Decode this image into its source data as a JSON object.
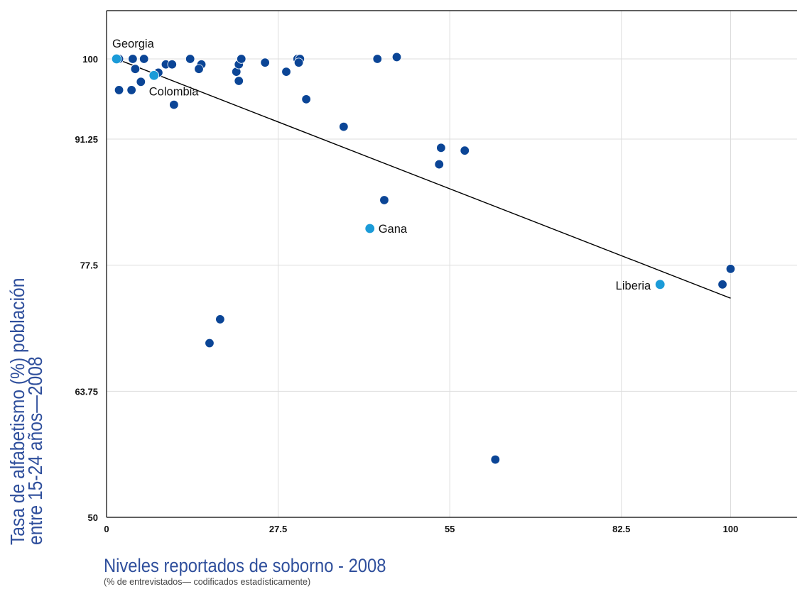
{
  "chart_data": {
    "type": "scatter",
    "xlabel": "Niveles reportados de soborno - 2008",
    "xlabel_note": "(% de entrevistados— codificados estadísticamente)",
    "ylabel": [
      "Tasa de alfabetismo (%) población",
      "entre 15-24 años—2008"
    ],
    "xlim": [
      0,
      110
    ],
    "ylim": [
      50,
      105.5
    ],
    "x_ticks": [
      {
        "value": 0,
        "label": "0"
      },
      {
        "value": 27.5,
        "label": "27.5"
      },
      {
        "value": 55,
        "label": "55"
      },
      {
        "value": 82.5,
        "label": "82.5"
      },
      {
        "value": 100,
        "label": "100"
      }
    ],
    "y_ticks": [
      {
        "value": 50,
        "label": "50"
      },
      {
        "value": 63.75,
        "label": "63.75"
      },
      {
        "value": 77.5,
        "label": "77.5"
      },
      {
        "value": 91.25,
        "label": "91.25"
      },
      {
        "value": 100,
        "label": "100"
      }
    ],
    "grid": true,
    "colors": {
      "point": "#0b4596",
      "highlight": "#1b9bd8",
      "trend": "#000000",
      "grid": "#dddddd",
      "title": "#2f4f9c"
    },
    "points": [
      {
        "x": 2,
        "y": 100
      },
      {
        "x": 4.2,
        "y": 100
      },
      {
        "x": 6,
        "y": 100
      },
      {
        "x": 4.6,
        "y": 98.9
      },
      {
        "x": 2,
        "y": 96.6
      },
      {
        "x": 4,
        "y": 96.6
      },
      {
        "x": 5.5,
        "y": 97.5
      },
      {
        "x": 8.3,
        "y": 98.5
      },
      {
        "x": 9.5,
        "y": 99.4
      },
      {
        "x": 10.5,
        "y": 99.4
      },
      {
        "x": 10.8,
        "y": 95
      },
      {
        "x": 13.4,
        "y": 100
      },
      {
        "x": 15.2,
        "y": 99.4
      },
      {
        "x": 14.8,
        "y": 98.9
      },
      {
        "x": 16.5,
        "y": 69
      },
      {
        "x": 18.2,
        "y": 71.6
      },
      {
        "x": 20.8,
        "y": 98.6
      },
      {
        "x": 21.2,
        "y": 99.4
      },
      {
        "x": 21.6,
        "y": 100
      },
      {
        "x": 21.2,
        "y": 97.6
      },
      {
        "x": 25.4,
        "y": 99.6
      },
      {
        "x": 28.8,
        "y": 98.6
      },
      {
        "x": 30.6,
        "y": 100
      },
      {
        "x": 31,
        "y": 100
      },
      {
        "x": 30.8,
        "y": 99.6
      },
      {
        "x": 32,
        "y": 95.6
      },
      {
        "x": 38,
        "y": 92.6
      },
      {
        "x": 43.4,
        "y": 100
      },
      {
        "x": 44.5,
        "y": 84.6
      },
      {
        "x": 46.5,
        "y": 100.2
      },
      {
        "x": 53.3,
        "y": 88.5
      },
      {
        "x": 53.6,
        "y": 90.3
      },
      {
        "x": 57.4,
        "y": 90
      },
      {
        "x": 62.3,
        "y": 56.3
      },
      {
        "x": 98.7,
        "y": 75.4
      },
      {
        "x": 100,
        "y": 77.1
      }
    ],
    "highlighted": [
      {
        "name": "Georgia",
        "x": 1.6,
        "y": 100
      },
      {
        "name": "Colombia",
        "x": 7.6,
        "y": 98.2
      },
      {
        "name": "Gana",
        "x": 42.2,
        "y": 81.5
      },
      {
        "name": "Liberia",
        "x": 88.7,
        "y": 75.4
      }
    ],
    "trendline": {
      "x1": 1.2,
      "y1": 100.1,
      "x2": 100,
      "y2": 73.9
    }
  }
}
